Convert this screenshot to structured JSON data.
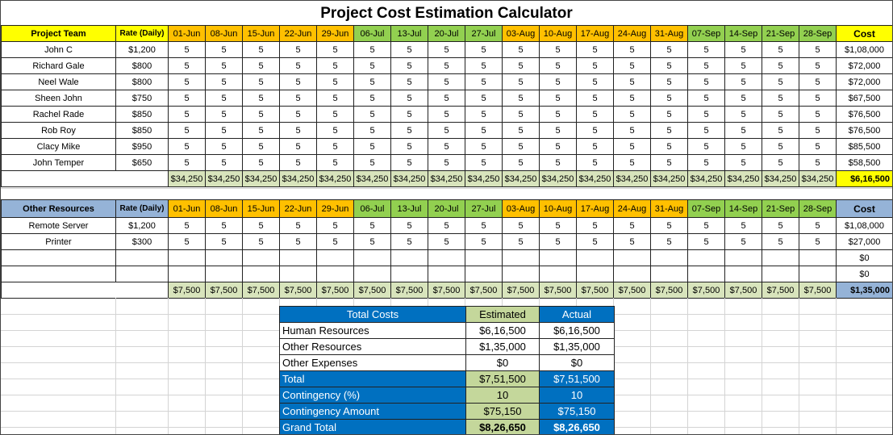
{
  "title": "Project Cost Estimation Calculator",
  "dates": [
    "01-Jun",
    "08-Jun",
    "15-Jun",
    "22-Jun",
    "29-Jun",
    "06-Jul",
    "13-Jul",
    "20-Jul",
    "27-Jul",
    "03-Aug",
    "10-Aug",
    "17-Aug",
    "24-Aug",
    "31-Aug",
    "07-Sep",
    "14-Sep",
    "21-Sep",
    "28-Sep"
  ],
  "date_colors": [
    "#ffc000",
    "#ffc000",
    "#ffc000",
    "#ffc000",
    "#ffc000",
    "#92d050",
    "#92d050",
    "#92d050",
    "#92d050",
    "#ffc000",
    "#ffc000",
    "#ffc000",
    "#ffc000",
    "#ffc000",
    "#92d050",
    "#92d050",
    "#92d050",
    "#92d050"
  ],
  "team": {
    "header": "Project Team",
    "rate_header": "Rate (Daily)",
    "cost_header": "Cost",
    "rows": [
      {
        "name": "John C",
        "rate": "$1,200",
        "days": [
          "5",
          "5",
          "5",
          "5",
          "5",
          "5",
          "5",
          "5",
          "5",
          "5",
          "5",
          "5",
          "5",
          "5",
          "5",
          "5",
          "5",
          "5"
        ],
        "cost": "$1,08,000"
      },
      {
        "name": "Richard Gale",
        "rate": "$800",
        "days": [
          "5",
          "5",
          "5",
          "5",
          "5",
          "5",
          "5",
          "5",
          "5",
          "5",
          "5",
          "5",
          "5",
          "5",
          "5",
          "5",
          "5",
          "5"
        ],
        "cost": "$72,000"
      },
      {
        "name": "Neel Wale",
        "rate": "$800",
        "days": [
          "5",
          "5",
          "5",
          "5",
          "5",
          "5",
          "5",
          "5",
          "5",
          "5",
          "5",
          "5",
          "5",
          "5",
          "5",
          "5",
          "5",
          "5"
        ],
        "cost": "$72,000"
      },
      {
        "name": "Sheen John",
        "rate": "$750",
        "days": [
          "5",
          "5",
          "5",
          "5",
          "5",
          "5",
          "5",
          "5",
          "5",
          "5",
          "5",
          "5",
          "5",
          "5",
          "5",
          "5",
          "5",
          "5"
        ],
        "cost": "$67,500"
      },
      {
        "name": "Rachel Rade",
        "rate": "$850",
        "days": [
          "5",
          "5",
          "5",
          "5",
          "5",
          "5",
          "5",
          "5",
          "5",
          "5",
          "5",
          "5",
          "5",
          "5",
          "5",
          "5",
          "5",
          "5"
        ],
        "cost": "$76,500"
      },
      {
        "name": "Rob Roy",
        "rate": "$850",
        "days": [
          "5",
          "5",
          "5",
          "5",
          "5",
          "5",
          "5",
          "5",
          "5",
          "5",
          "5",
          "5",
          "5",
          "5",
          "5",
          "5",
          "5",
          "5"
        ],
        "cost": "$76,500"
      },
      {
        "name": "Clacy Mike",
        "rate": "$950",
        "days": [
          "5",
          "5",
          "5",
          "5",
          "5",
          "5",
          "5",
          "5",
          "5",
          "5",
          "5",
          "5",
          "5",
          "5",
          "5",
          "5",
          "5",
          "5"
        ],
        "cost": "$85,500"
      },
      {
        "name": "John Temper",
        "rate": "$650",
        "days": [
          "5",
          "5",
          "5",
          "5",
          "5",
          "5",
          "5",
          "5",
          "5",
          "5",
          "5",
          "5",
          "5",
          "5",
          "5",
          "5",
          "5",
          "5"
        ],
        "cost": "$58,500"
      }
    ],
    "totals": [
      "$34,250",
      "$34,250",
      "$34,250",
      "$34,250",
      "$34,250",
      "$34,250",
      "$34,250",
      "$34,250",
      "$34,250",
      "$34,250",
      "$34,250",
      "$34,250",
      "$34,250",
      "$34,250",
      "$34,250",
      "$34,250",
      "$34,250",
      "$34,250"
    ],
    "grand": "$6,16,500"
  },
  "other": {
    "header": "Other Resources",
    "rate_header": "Rate (Daily)",
    "cost_header": "Cost",
    "rows": [
      {
        "name": "Remote Server",
        "rate": "$1,200",
        "days": [
          "5",
          "5",
          "5",
          "5",
          "5",
          "5",
          "5",
          "5",
          "5",
          "5",
          "5",
          "5",
          "5",
          "5",
          "5",
          "5",
          "5",
          "5"
        ],
        "cost": "$1,08,000"
      },
      {
        "name": "Printer",
        "rate": "$300",
        "days": [
          "5",
          "5",
          "5",
          "5",
          "5",
          "5",
          "5",
          "5",
          "5",
          "5",
          "5",
          "5",
          "5",
          "5",
          "5",
          "5",
          "5",
          "5"
        ],
        "cost": "$27,000"
      },
      {
        "name": "",
        "rate": "",
        "days": [
          "",
          "",
          "",
          "",
          "",
          "",
          "",
          "",
          "",
          "",
          "",
          "",
          "",
          "",
          "",
          "",
          "",
          ""
        ],
        "cost": "$0"
      },
      {
        "name": "",
        "rate": "",
        "days": [
          "",
          "",
          "",
          "",
          "",
          "",
          "",
          "",
          "",
          "",
          "",
          "",
          "",
          "",
          "",
          "",
          "",
          ""
        ],
        "cost": "$0"
      }
    ],
    "totals": [
      "$7,500",
      "$7,500",
      "$7,500",
      "$7,500",
      "$7,500",
      "$7,500",
      "$7,500",
      "$7,500",
      "$7,500",
      "$7,500",
      "$7,500",
      "$7,500",
      "$7,500",
      "$7,500",
      "$7,500",
      "$7,500",
      "$7,500",
      "$7,500"
    ],
    "grand": "$1,35,000"
  },
  "summary": {
    "headers": [
      "Total Costs",
      "Estimated",
      "Actual"
    ],
    "rows": [
      {
        "label": "Human Resources",
        "estimated": "$6,16,500",
        "actual": "$6,16,500"
      },
      {
        "label": "Other Resources",
        "estimated": "$1,35,000",
        "actual": "$1,35,000"
      },
      {
        "label": "Other Expenses",
        "estimated": "$0",
        "actual": "$0"
      },
      {
        "label": "Total",
        "estimated": "$7,51,500",
        "actual": "$7,51,500"
      },
      {
        "label": "Contingency (%)",
        "estimated": "10",
        "actual": "10"
      },
      {
        "label": "Contingency Amount",
        "estimated": "$75,150",
        "actual": "$75,150"
      },
      {
        "label": "Grand Total",
        "estimated": "$8,26,650",
        "actual": "$8,26,650"
      }
    ]
  }
}
